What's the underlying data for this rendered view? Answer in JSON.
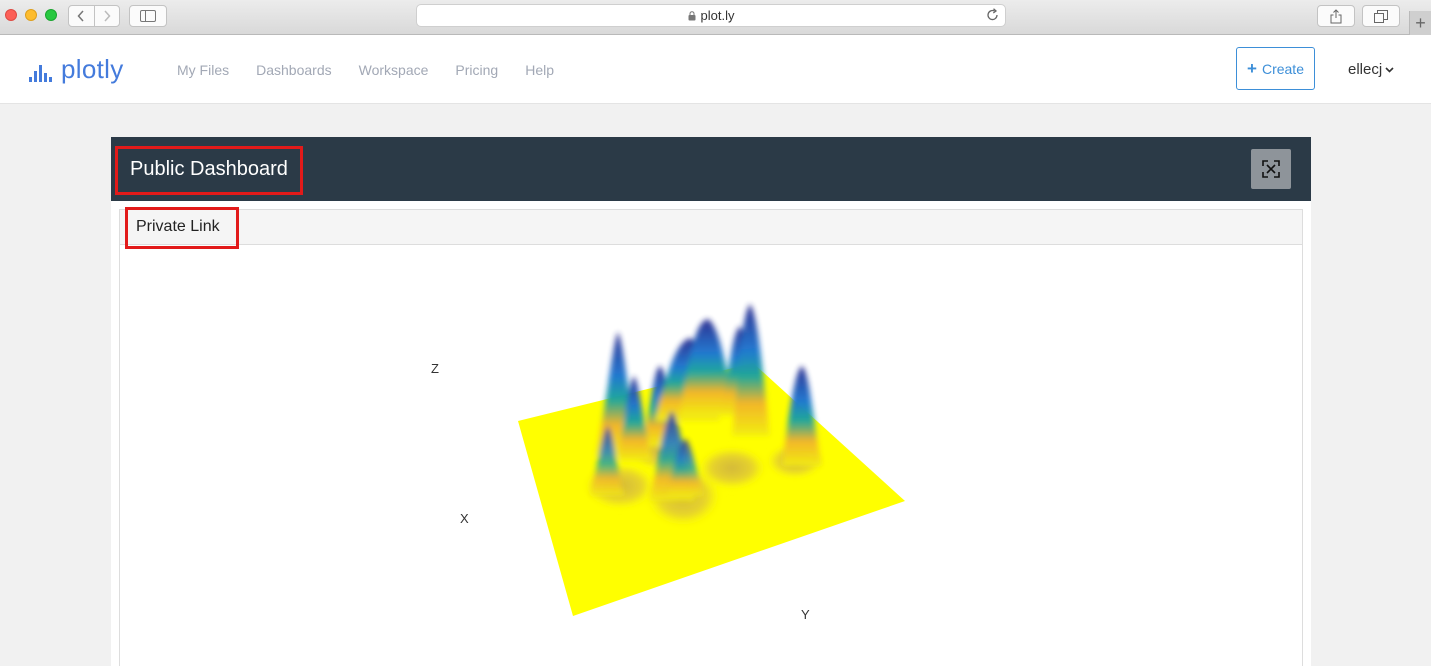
{
  "browser": {
    "url": "plot.ly",
    "icons": [
      "back-icon",
      "forward-icon",
      "sidebar-icon",
      "lock-icon",
      "reload-icon",
      "share-icon",
      "tabs-icon",
      "plus-icon"
    ]
  },
  "header": {
    "logo_text": "plotly",
    "nav": [
      "My Files",
      "Dashboards",
      "Workspace",
      "Pricing",
      "Help"
    ],
    "create_label": "Create",
    "user": "ellecj"
  },
  "dashboard": {
    "title": "Public Dashboard",
    "panel_title": "Private Link",
    "colors": {
      "bar": "#2b3a47",
      "highlight": "#e21a1a",
      "accent": "#3d8fd8",
      "surface_base": "#ffff00"
    }
  },
  "chart_data": {
    "type": "surface",
    "axis_labels": {
      "x": "X",
      "y": "Y",
      "z": "Z"
    },
    "colorscale": [
      "#ffff00",
      "#ffbf1f",
      "#18a99a",
      "#1f6fd0",
      "#2d2f91"
    ]
  }
}
